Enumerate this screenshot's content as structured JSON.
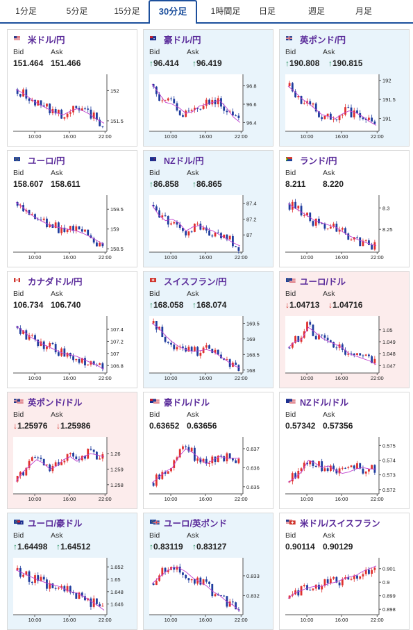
{
  "tabs": [
    {
      "label": "1分足",
      "active": false
    },
    {
      "label": "5分足",
      "active": false
    },
    {
      "label": "15分足",
      "active": false
    },
    {
      "label": "30分足",
      "active": true
    },
    {
      "label": "1時間足",
      "active": false
    },
    {
      "label": "日足",
      "active": false
    },
    {
      "label": "週足",
      "active": false
    },
    {
      "label": "月足",
      "active": false
    }
  ],
  "labels": {
    "bid": "Bid",
    "ask": "Ask"
  },
  "colors": {
    "up_card": "#e9f4fb",
    "down_card": "#fcecec",
    "up_candle": "#e0302e",
    "down_candle": "#1f3c9e",
    "ma": "#c040d0",
    "tab_accent": "#1c4f9c"
  },
  "cards": [
    {
      "pair": "米ドル/円",
      "flag": "us",
      "trend": "flat",
      "bid": "151.464",
      "ask": "151.466",
      "chart_data": {
        "type": "candlestick",
        "x_ticks": [
          "10:00",
          "16:00",
          "22:00"
        ],
        "y_ticks": [
          "152",
          "151.5"
        ],
        "y_range": [
          151.35,
          152.2
        ],
        "trend": [
          152.02,
          151.96,
          151.88,
          151.8,
          151.74,
          151.68,
          151.63,
          151.6,
          151.66,
          151.7,
          151.66,
          151.6,
          151.52,
          151.46
        ]
      }
    },
    {
      "pair": "豪ドル/円",
      "flag": "au",
      "trend": "up",
      "bid": "96.414",
      "ask": "96.419",
      "chart_data": {
        "type": "candlestick",
        "x_ticks": [
          "10:00",
          "16:00",
          "22:00"
        ],
        "y_ticks": [
          "96.8",
          "96.6",
          "96.4"
        ],
        "y_range": [
          96.32,
          96.88
        ],
        "trend": [
          96.82,
          96.72,
          96.62,
          96.6,
          96.56,
          96.5,
          96.52,
          96.58,
          96.6,
          96.62,
          96.64,
          96.56,
          96.46,
          96.4
        ]
      }
    },
    {
      "pair": "英ポンド/円",
      "flag": "uk",
      "trend": "up",
      "bid": "190.808",
      "ask": "190.815",
      "chart_data": {
        "type": "candlestick",
        "x_ticks": [
          "10:00",
          "16:00",
          "22:00"
        ],
        "y_ticks": [
          "192",
          "191.5",
          "191"
        ],
        "y_range": [
          190.7,
          192.05
        ],
        "trend": [
          191.85,
          191.7,
          191.52,
          191.4,
          191.25,
          191.1,
          191.05,
          191.0,
          191.12,
          191.2,
          191.15,
          191.05,
          190.92,
          190.82
        ]
      }
    },
    {
      "pair": "ユーロ/円",
      "flag": "eu",
      "trend": "flat",
      "bid": "158.607",
      "ask": "158.611",
      "chart_data": {
        "type": "candlestick",
        "x_ticks": [
          "10:00",
          "16:00",
          "22:00"
        ],
        "y_ticks": [
          "159.5",
          "159",
          "158.5"
        ],
        "y_range": [
          158.45,
          159.75
        ],
        "trend": [
          159.68,
          159.55,
          159.38,
          159.28,
          159.18,
          159.1,
          159.05,
          159.02,
          158.98,
          158.95,
          158.88,
          158.8,
          158.7,
          158.61
        ]
      }
    },
    {
      "pair": "NZドル/円",
      "flag": "nz",
      "trend": "up",
      "bid": "86.858",
      "ask": "86.865",
      "chart_data": {
        "type": "candlestick",
        "x_ticks": [
          "10:00",
          "16:00",
          "22:00"
        ],
        "y_ticks": [
          "87.4",
          "87.2",
          "87"
        ],
        "y_range": [
          86.8,
          87.45
        ],
        "trend": [
          87.38,
          87.25,
          87.18,
          87.2,
          87.15,
          87.05,
          87.1,
          87.12,
          87.08,
          87.05,
          87.0,
          86.95,
          86.9,
          86.86
        ]
      }
    },
    {
      "pair": "ランド/円",
      "flag": "za",
      "trend": "flat",
      "bid": "8.211",
      "ask": "8.220",
      "chart_data": {
        "type": "candlestick",
        "x_ticks": [
          "10:00",
          "16:00",
          "22:00"
        ],
        "y_ticks": [
          "8.3",
          "8.25"
        ],
        "y_range": [
          8.2,
          8.32
        ],
        "trend": [
          8.31,
          8.3,
          8.29,
          8.28,
          8.27,
          8.265,
          8.26,
          8.255,
          8.245,
          8.235,
          8.228,
          8.222,
          8.216,
          8.212
        ]
      }
    },
    {
      "pair": "カナダドル/円",
      "flag": "ca",
      "trend": "flat",
      "bid": "106.734",
      "ask": "106.740",
      "chart_data": {
        "type": "candlestick",
        "x_ticks": [
          "10:00",
          "16:00",
          "22:00"
        ],
        "y_ticks": [
          "107.4",
          "107.2",
          "107",
          "106.8"
        ],
        "y_range": [
          106.7,
          107.55
        ],
        "trend": [
          107.45,
          107.38,
          107.28,
          107.22,
          107.15,
          107.1,
          107.05,
          107.0,
          106.98,
          106.95,
          106.9,
          106.85,
          106.8,
          106.74
        ]
      }
    },
    {
      "pair": "スイスフラン/円",
      "flag": "ch",
      "trend": "up",
      "bid": "168.058",
      "ask": "168.074",
      "chart_data": {
        "type": "candlestick",
        "x_ticks": [
          "10:00",
          "16:00",
          "22:00"
        ],
        "y_ticks": [
          "169.5",
          "169",
          "168.5",
          "168"
        ],
        "y_range": [
          167.95,
          169.6
        ],
        "trend": [
          169.5,
          169.35,
          169.1,
          168.9,
          168.75,
          168.65,
          168.6,
          168.62,
          168.66,
          168.6,
          168.45,
          168.3,
          168.15,
          168.06
        ]
      }
    },
    {
      "pair": "ユーロ/ドル",
      "flag": "euus",
      "trend": "down",
      "bid": "1.04713",
      "ask": "1.04716",
      "chart_data": {
        "type": "candlestick",
        "x_ticks": [
          "10:00",
          "16:00",
          "22:00"
        ],
        "y_ticks": [
          "1.05",
          "1.049",
          "1.048",
          "1.047"
        ],
        "y_range": [
          1.0465,
          1.0508
        ],
        "trend": [
          1.0485,
          1.049,
          1.0492,
          1.0502,
          1.0498,
          1.0493,
          1.049,
          1.0488,
          1.0485,
          1.048,
          1.0478,
          1.0476,
          1.0474,
          1.0471
        ]
      }
    },
    {
      "pair": "英ポンド/ドル",
      "flag": "ukus",
      "trend": "down",
      "bid": "1.25976",
      "ask": "1.25986",
      "chart_data": {
        "type": "candlestick",
        "x_ticks": [
          "10:00",
          "16:00",
          "22:00"
        ],
        "y_ticks": [
          "1.26",
          "1.259",
          "1.258"
        ],
        "y_range": [
          1.2575,
          1.2608
        ],
        "trend": [
          1.2582,
          1.2588,
          1.2592,
          1.2596,
          1.2594,
          1.259,
          1.2592,
          1.2596,
          1.2598,
          1.2595,
          1.2598,
          1.26,
          1.2599,
          1.2598
        ]
      }
    },
    {
      "pair": "豪ドル/ドル",
      "flag": "auus",
      "trend": "flat",
      "bid": "0.63652",
      "ask": "0.63656",
      "chart_data": {
        "type": "candlestick",
        "x_ticks": [
          "10:00",
          "16:00",
          "22:00"
        ],
        "y_ticks": [
          "0.637",
          "0.636",
          "0.635"
        ],
        "y_range": [
          0.6347,
          0.6374
        ],
        "trend": [
          0.6352,
          0.6355,
          0.6358,
          0.636,
          0.6366,
          0.637,
          0.6368,
          0.6365,
          0.6362,
          0.6364,
          0.6366,
          0.6365,
          0.6365,
          0.6365
        ]
      }
    },
    {
      "pair": "NZドル/ドル",
      "flag": "nzus",
      "trend": "flat",
      "bid": "0.57342",
      "ask": "0.57356",
      "chart_data": {
        "type": "candlestick",
        "x_ticks": [
          "10:00",
          "16:00",
          "22:00"
        ],
        "y_ticks": [
          "0.575",
          "0.574",
          "0.573",
          "0.572"
        ],
        "y_range": [
          0.5718,
          0.5753
        ],
        "trend": [
          0.5725,
          0.5728,
          0.5732,
          0.574,
          0.5738,
          0.5735,
          0.5736,
          0.5733,
          0.5731,
          0.5732,
          0.5734,
          0.5735,
          0.5734,
          0.5734
        ]
      }
    },
    {
      "pair": "ユーロ/豪ドル",
      "flag": "euau",
      "trend": "up",
      "bid": "1.64498",
      "ask": "1.64512",
      "chart_data": {
        "type": "candlestick",
        "x_ticks": [
          "10:00",
          "16:00",
          "22:00"
        ],
        "y_ticks": [
          "1.652",
          "1.65",
          "1.648",
          "1.646"
        ],
        "y_range": [
          1.6445,
          1.6528
        ],
        "trend": [
          1.6515,
          1.651,
          1.6505,
          1.65,
          1.6496,
          1.6492,
          1.649,
          1.6485,
          1.648,
          1.6478,
          1.6472,
          1.6465,
          1.6458,
          1.645
        ]
      }
    },
    {
      "pair": "ユーロ/英ポンド",
      "flag": "euuk",
      "trend": "up",
      "bid": "0.83119",
      "ask": "0.83127",
      "chart_data": {
        "type": "candlestick",
        "x_ticks": [
          "10:00",
          "16:00",
          "22:00"
        ],
        "y_ticks": [
          "0.833",
          "0.832"
        ],
        "y_range": [
          0.8311,
          0.8337
        ],
        "trend": [
          0.8326,
          0.8329,
          0.8332,
          0.8334,
          0.8334,
          0.8332,
          0.8329,
          0.8327,
          0.8325,
          0.8322,
          0.832,
          0.8317,
          0.8315,
          0.8312
        ]
      }
    },
    {
      "pair": "米ドル/スイスフラン",
      "flag": "usch",
      "trend": "flat",
      "bid": "0.90114",
      "ask": "0.90129",
      "chart_data": {
        "type": "candlestick",
        "x_ticks": [
          "10:00",
          "16:00",
          "22:00"
        ],
        "y_ticks": [
          "0.901",
          "0.9",
          "0.899",
          "0.898"
        ],
        "y_range": [
          0.8977,
          0.9015
        ],
        "trend": [
          0.8988,
          0.8992,
          0.8994,
          0.8996,
          0.8997,
          0.8997,
          0.8999,
          0.9,
          0.9002,
          0.9004,
          0.9005,
          0.9008,
          0.901,
          0.9012
        ]
      }
    }
  ]
}
